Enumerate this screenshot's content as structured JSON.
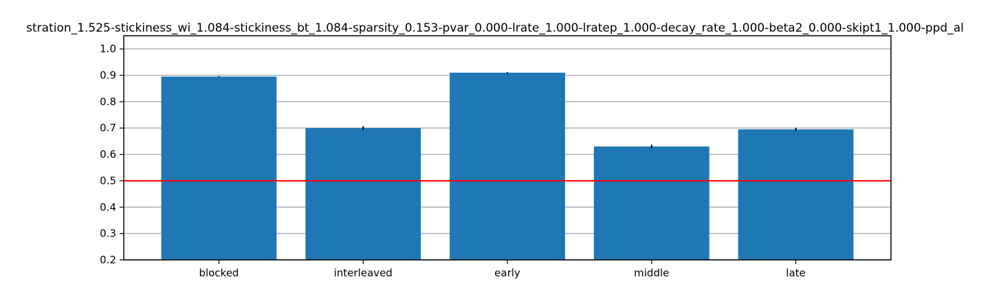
{
  "chart_data": {
    "type": "bar",
    "title": "stration_1.525-stickiness_wi_1.084-stickiness_bt_1.084-sparsity_0.153-pvar_0.000-lrate_1.000-lratep_1.000-decay_rate_1.000-beta2_0.000-skipt1_1.000-ppd_al",
    "xlabel": "",
    "ylabel": "",
    "categories": [
      "blocked",
      "interleaved",
      "early",
      "middle",
      "late"
    ],
    "values": [
      0.895,
      0.7,
      0.91,
      0.63,
      0.695
    ],
    "errors": [
      0.002,
      0.007,
      0.002,
      0.007,
      0.006
    ],
    "ylim": [
      0.2,
      1.05
    ],
    "yticks": [
      0.2,
      0.3,
      0.4,
      0.5,
      0.6,
      0.7,
      0.8,
      0.9,
      1.0
    ],
    "ytick_labels": [
      "0.2",
      "0.3",
      "0.4",
      "0.5",
      "0.6",
      "0.7",
      "0.8",
      "0.9",
      "1.0"
    ],
    "reference_line": 0.5,
    "grid": "horizontal",
    "colors": {
      "bar": "#1f77b4",
      "reference_line": "#ff0000",
      "grid": "#b0b0b0",
      "error_bar": "#000000",
      "axis": "#000000"
    }
  }
}
